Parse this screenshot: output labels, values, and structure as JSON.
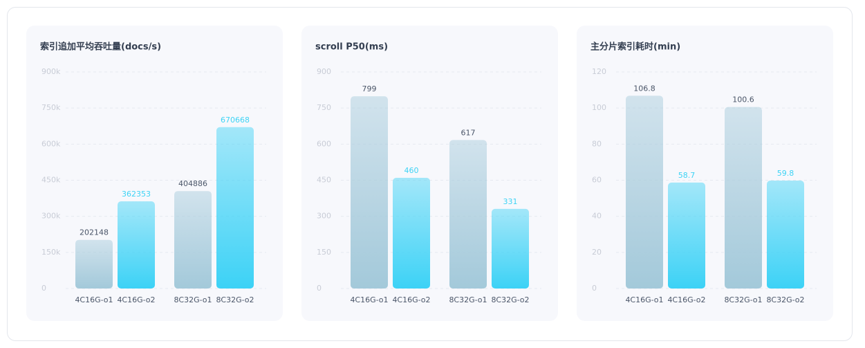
{
  "chart_data": [
    {
      "type": "bar",
      "title": "索引追加平均吞吐量(docs/s)",
      "categories": [
        "4C16G-o1",
        "4C16G-o2",
        "8C32G-o1",
        "8C32G-o2"
      ],
      "values": [
        202148,
        362353,
        404886,
        670668
      ],
      "colors": [
        "#a3c9da",
        "#3cd2f6",
        "#a3c9da",
        "#3cd2f6"
      ],
      "value_label_colors": [
        "#4a5568",
        "#3dd3f5",
        "#4a5568",
        "#3dd3f5"
      ],
      "ylim": [
        0,
        900000
      ],
      "yticks": [
        0,
        {
          "value": 150000,
          "label": "150k"
        },
        {
          "value": 300000,
          "label": "300k"
        },
        {
          "value": 450000,
          "label": "450k"
        },
        {
          "value": 600000,
          "label": "600k"
        },
        {
          "value": 750000,
          "label": "750k"
        },
        {
          "value": 900000,
          "label": "900k"
        }
      ],
      "grid": true
    },
    {
      "type": "bar",
      "title": "scroll P50(ms)",
      "categories": [
        "4C16G-o1",
        "4C16G-o2",
        "8C32G-o1",
        "8C32G-o2"
      ],
      "values": [
        799,
        460,
        617,
        331
      ],
      "colors": [
        "#a3c9da",
        "#3cd2f6",
        "#a3c9da",
        "#3cd2f6"
      ],
      "value_label_colors": [
        "#4a5568",
        "#3dd3f5",
        "#4a5568",
        "#3dd3f5"
      ],
      "ylim": [
        0,
        900
      ],
      "yticks": [
        0,
        150,
        300,
        450,
        600,
        750,
        900
      ],
      "grid": true
    },
    {
      "type": "bar",
      "title": "主分片索引耗时(min)",
      "categories": [
        "4C16G-o1",
        "4C16G-o2",
        "8C32G-o1",
        "8C32G-o2"
      ],
      "values": [
        106.8,
        58.7,
        100.6,
        59.8
      ],
      "colors": [
        "#a3c9da",
        "#3cd2f6",
        "#a3c9da",
        "#3cd2f6"
      ],
      "value_label_colors": [
        "#4a5568",
        "#3dd3f5",
        "#4a5568",
        "#3dd3f5"
      ],
      "ylim": [
        0,
        120
      ],
      "yticks": [
        0,
        20,
        40,
        60,
        80,
        100,
        120
      ],
      "grid": true
    }
  ]
}
